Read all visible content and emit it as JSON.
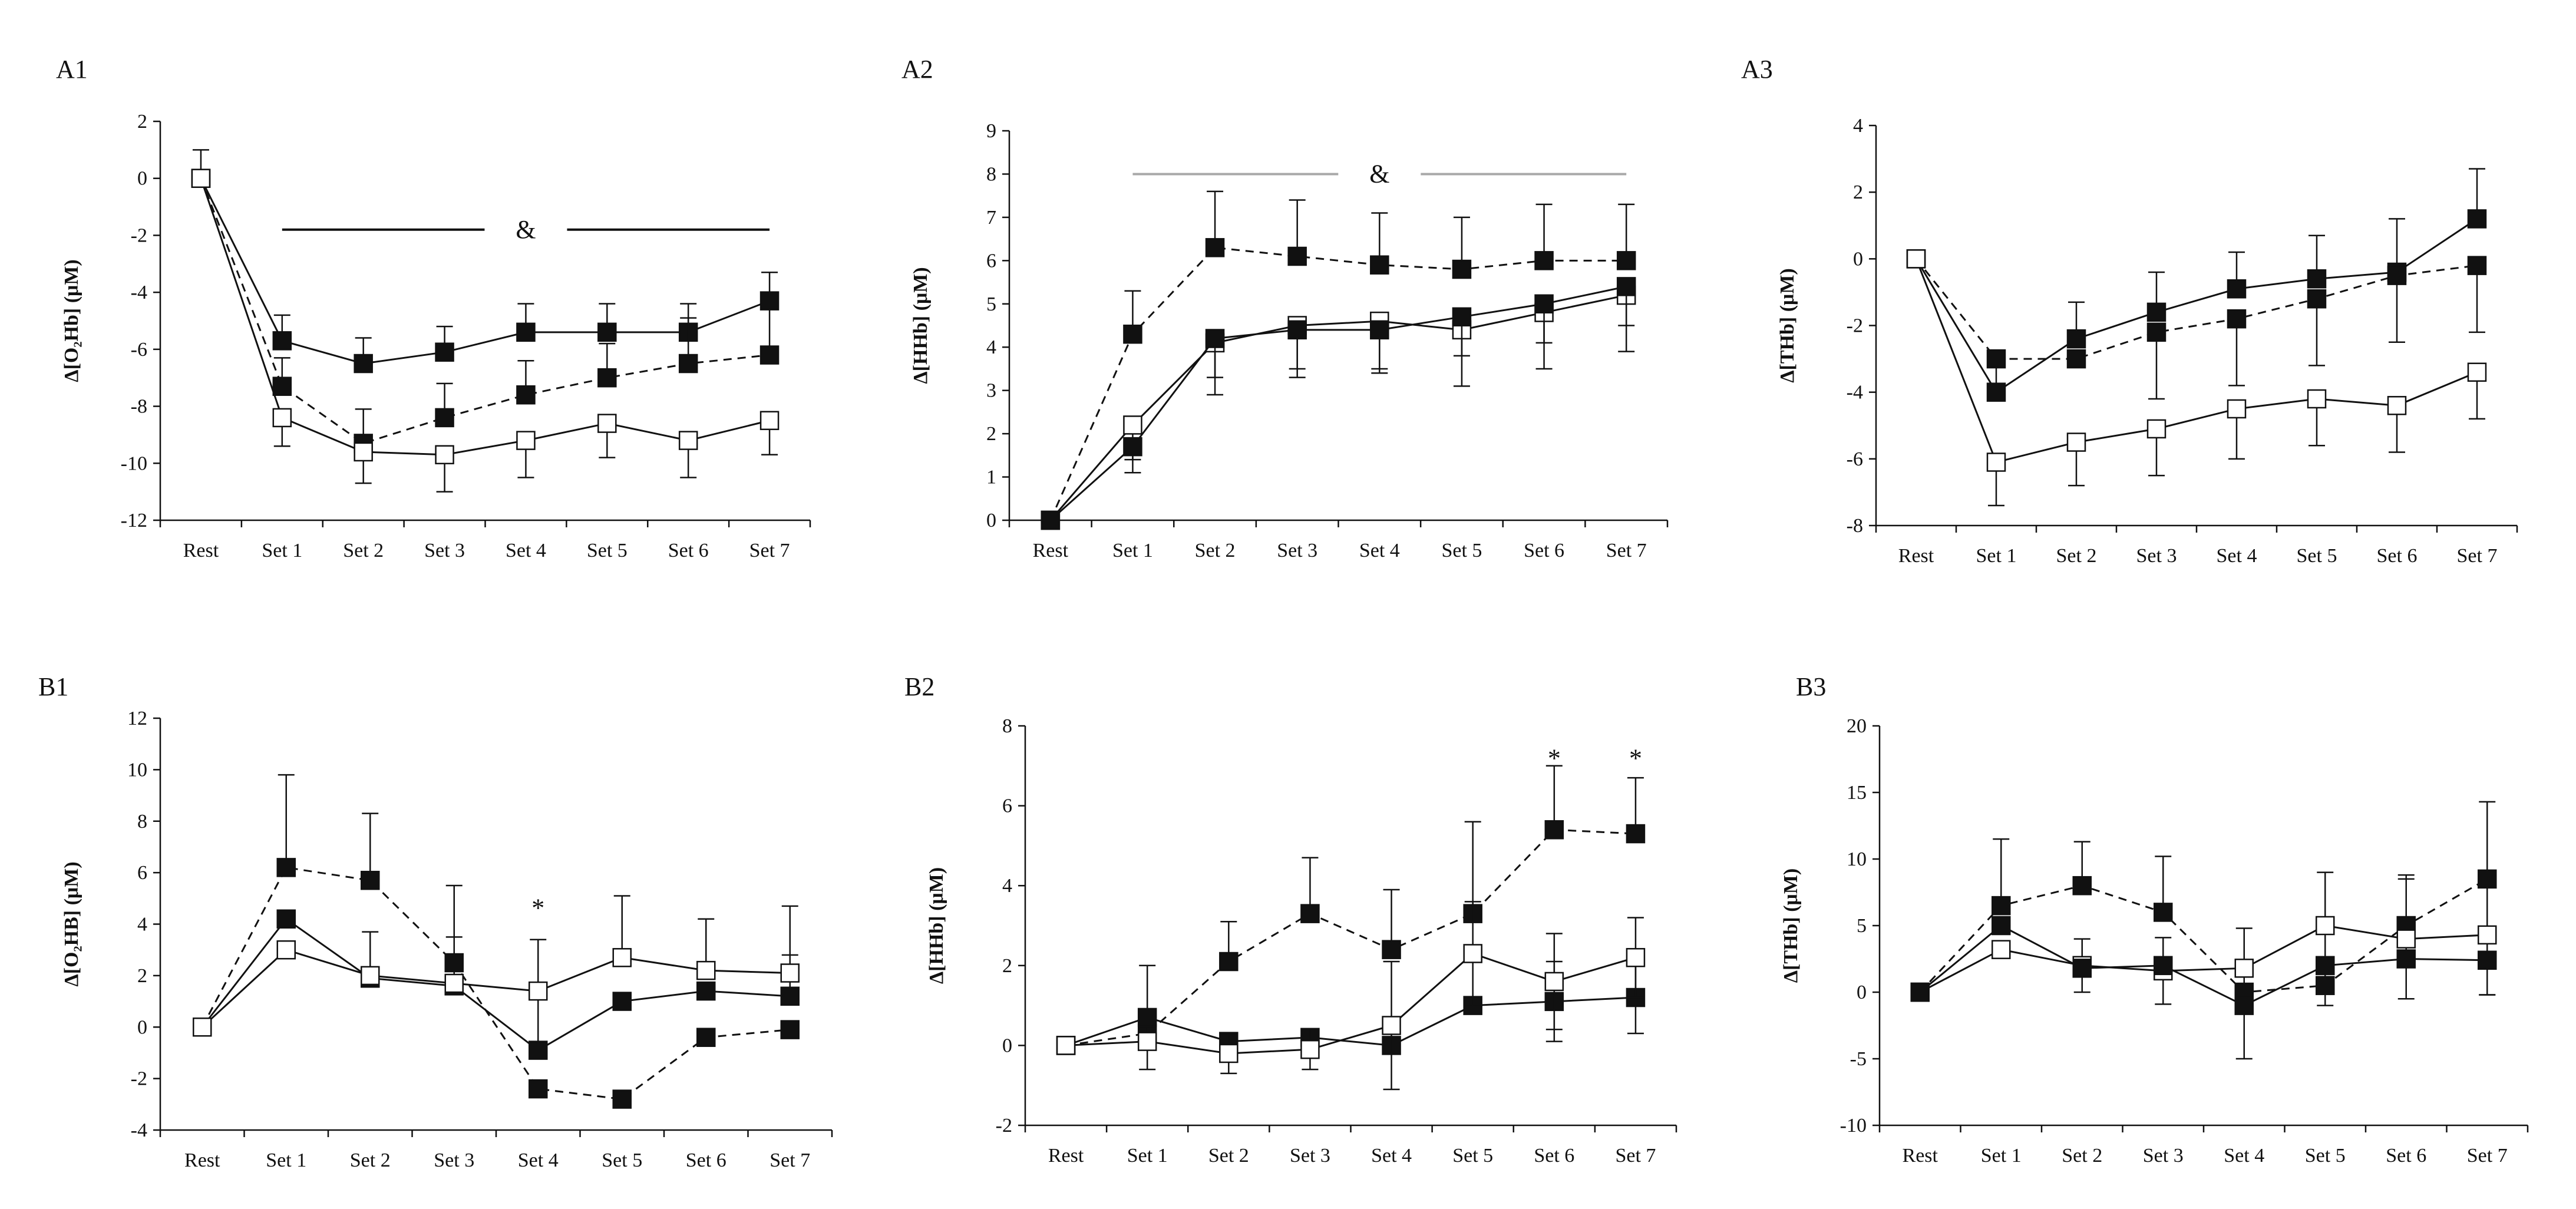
{
  "colors": {
    "ink": "#111111",
    "grey_bar": "#a8a8a8",
    "open_fill": "#ffffff",
    "filled": "#111111"
  },
  "chart_data": [
    {
      "id": "A1",
      "label": "A1",
      "type": "line",
      "categories": [
        "Rest",
        "Set 1",
        "Set 2",
        "Set 3",
        "Set 4",
        "Set 5",
        "Set 6",
        "Set 7"
      ],
      "ylabel": "Δ[O₂Hb] (μM)",
      "ylim": [
        -12,
        2
      ],
      "yticks": [
        -12,
        -10,
        -8,
        -6,
        -4,
        -2,
        0,
        2
      ],
      "series": [
        {
          "name": "filled-solid",
          "marker": "filled",
          "line": "solid",
          "values": [
            0,
            -5.7,
            -6.5,
            -6.1,
            -5.4,
            -5.4,
            -5.4,
            -4.3
          ],
          "errors": [
            1.0,
            0.9,
            0.9,
            0.9,
            1.0,
            1.0,
            1.0,
            1.0
          ],
          "err_dir": "up"
        },
        {
          "name": "filled-dashed",
          "marker": "filled",
          "line": "dashed",
          "values": [
            0,
            -7.3,
            -9.3,
            -8.4,
            -7.6,
            -7.0,
            -6.5,
            -6.2
          ],
          "errors": [
            0,
            1.0,
            1.2,
            1.2,
            1.2,
            1.2,
            1.6,
            1.6
          ],
          "err_dir": "up"
        },
        {
          "name": "open-solid",
          "marker": "open",
          "line": "solid",
          "values": [
            0,
            -8.4,
            -9.6,
            -9.7,
            -9.2,
            -8.6,
            -9.2,
            -8.5
          ],
          "errors": [
            0,
            1.0,
            1.1,
            1.3,
            1.3,
            1.2,
            1.3,
            1.2
          ],
          "err_dir": "down"
        }
      ],
      "annotations": [
        {
          "type": "significance-bar",
          "text": "&",
          "from": 1,
          "to": 7,
          "y": -1.8,
          "color": "#111111"
        }
      ]
    },
    {
      "id": "A2",
      "label": "A2",
      "type": "line",
      "categories": [
        "Rest",
        "Set 1",
        "Set 2",
        "Set 3",
        "Set 4",
        "Set 5",
        "Set 6",
        "Set 7"
      ],
      "ylabel": "Δ[HHb] (μM)",
      "ylim": [
        0,
        9
      ],
      "yticks": [
        0,
        1,
        2,
        3,
        4,
        5,
        6,
        7,
        8,
        9
      ],
      "series": [
        {
          "name": "filled-dashed",
          "marker": "filled",
          "line": "dashed",
          "values": [
            0,
            4.3,
            6.3,
            6.1,
            5.9,
            5.8,
            6.0,
            6.0
          ],
          "errors": [
            0,
            1.0,
            1.3,
            1.3,
            1.2,
            1.2,
            1.3,
            1.3
          ],
          "err_dir": "up"
        },
        {
          "name": "open-solid",
          "marker": "open",
          "line": "solid",
          "values": [
            0,
            2.2,
            4.1,
            4.5,
            4.6,
            4.4,
            4.8,
            5.2
          ],
          "errors": [
            0,
            0.8,
            1.2,
            1.2,
            1.2,
            1.3,
            1.3,
            1.3
          ],
          "err_dir": "down"
        },
        {
          "name": "filled-solid",
          "marker": "filled",
          "line": "solid",
          "values": [
            0,
            1.7,
            4.2,
            4.4,
            4.4,
            4.7,
            5.0,
            5.4
          ],
          "errors": [
            0,
            0.6,
            0.9,
            0.9,
            0.9,
            0.9,
            0.9,
            0.9
          ],
          "err_dir": "down"
        }
      ],
      "annotations": [
        {
          "type": "significance-bar",
          "text": "&",
          "from": 1,
          "to": 7,
          "y": 8.0,
          "color": "#a8a8a8"
        }
      ]
    },
    {
      "id": "A3",
      "label": "A3",
      "type": "line",
      "categories": [
        "Rest",
        "Set 1",
        "Set 2",
        "Set 3",
        "Set 4",
        "Set 5",
        "Set 6",
        "Set 7"
      ],
      "ylabel": "Δ[THb] (μM)",
      "ylim": [
        -8,
        4
      ],
      "yticks": [
        -8,
        -6,
        -4,
        -2,
        0,
        2,
        4
      ],
      "series": [
        {
          "name": "filled-solid",
          "marker": "filled",
          "line": "solid",
          "values": [
            0,
            -4.0,
            -2.4,
            -1.6,
            -0.9,
            -0.6,
            -0.4,
            1.2
          ],
          "errors": [
            0,
            1.0,
            1.1,
            1.2,
            1.1,
            1.3,
            1.6,
            1.5
          ],
          "err_dir": "up"
        },
        {
          "name": "filled-dashed",
          "marker": "filled",
          "line": "dashed",
          "values": [
            0,
            -3.0,
            -3.0,
            -2.2,
            -1.8,
            -1.2,
            -0.5,
            -0.2
          ],
          "errors": [
            0,
            0,
            0,
            2.0,
            2.0,
            2.0,
            2.0,
            2.0
          ],
          "err_dir": "down"
        },
        {
          "name": "open-solid",
          "marker": "open",
          "line": "solid",
          "values": [
            0,
            -6.1,
            -5.5,
            -5.1,
            -4.5,
            -4.2,
            -4.4,
            -3.4
          ],
          "errors": [
            0,
            1.3,
            1.3,
            1.4,
            1.5,
            1.4,
            1.4,
            1.4
          ],
          "err_dir": "down"
        }
      ],
      "annotations": []
    },
    {
      "id": "B1",
      "label": "B1",
      "type": "line",
      "categories": [
        "Rest",
        "Set 1",
        "Set 2",
        "Set 3",
        "Set 4",
        "Set 5",
        "Set 6",
        "Set 7"
      ],
      "ylabel": "Δ[O₂HB] (μM)",
      "ylim": [
        -4,
        12
      ],
      "yticks": [
        -4,
        -2,
        0,
        2,
        4,
        6,
        8,
        10,
        12
      ],
      "series": [
        {
          "name": "filled-dashed",
          "marker": "filled",
          "line": "dashed",
          "values": [
            0,
            6.2,
            5.7,
            2.5,
            -2.4,
            -2.8,
            -0.4,
            -0.1
          ],
          "errors": [
            0,
            3.6,
            2.6,
            3.0,
            0,
            0,
            0,
            0
          ],
          "err_dir": "up"
        },
        {
          "name": "filled-solid",
          "marker": "filled",
          "line": "solid",
          "values": [
            0,
            4.2,
            1.9,
            1.6,
            -0.9,
            1.0,
            1.4,
            1.2
          ],
          "errors": [
            0,
            0,
            1.8,
            1.9,
            2.0,
            0,
            0,
            1.6
          ],
          "err_dir": "up"
        },
        {
          "name": "open-solid",
          "marker": "open",
          "line": "solid",
          "values": [
            0,
            3.0,
            2.0,
            1.7,
            1.4,
            2.7,
            2.2,
            2.1
          ],
          "errors": [
            0,
            0,
            0,
            0,
            2.0,
            2.4,
            2.0,
            2.6
          ],
          "err_dir": "up"
        }
      ],
      "annotations": [
        {
          "type": "star",
          "text": "*",
          "category": 4,
          "y": 4.8
        }
      ]
    },
    {
      "id": "B2",
      "label": "B2",
      "type": "line",
      "categories": [
        "Rest",
        "Set 1",
        "Set 2",
        "Set 3",
        "Set 4",
        "Set 5",
        "Set 6",
        "Set 7"
      ],
      "ylabel": "Δ[HHb] (μM)",
      "ylim": [
        -2,
        8
      ],
      "yticks": [
        -2,
        0,
        2,
        4,
        6,
        8
      ],
      "series": [
        {
          "name": "filled-dashed",
          "marker": "filled",
          "line": "dashed",
          "values": [
            0,
            0.3,
            2.1,
            3.3,
            2.4,
            3.3,
            5.4,
            5.3
          ],
          "errors": [
            0,
            0,
            1.0,
            1.4,
            1.5,
            2.3,
            1.6,
            1.4
          ],
          "err_dir": "up"
        },
        {
          "name": "filled-solid",
          "marker": "filled",
          "line": "solid",
          "values": [
            0,
            0.7,
            0.1,
            0.2,
            0.0,
            1.0,
            1.1,
            1.2
          ],
          "errors": [
            0,
            1.3,
            0,
            0,
            0,
            0,
            1.0,
            0.9
          ],
          "err_dir": "both"
        },
        {
          "name": "open-solid",
          "marker": "open",
          "line": "solid",
          "values": [
            0,
            0.1,
            -0.2,
            -0.1,
            0.5,
            2.3,
            1.6,
            2.2
          ],
          "errors": [
            0,
            0,
            0.5,
            0.5,
            1.6,
            1.3,
            1.2,
            1.0
          ],
          "err_dir": "both"
        }
      ],
      "annotations": [
        {
          "type": "star",
          "text": "*",
          "category": 6,
          "y": 7.3
        },
        {
          "type": "star",
          "text": "*",
          "category": 7,
          "y": 7.3
        }
      ]
    },
    {
      "id": "B3",
      "label": "B3",
      "type": "line",
      "categories": [
        "Rest",
        "Set 1",
        "Set 2",
        "Set 3",
        "Set 4",
        "Set 5",
        "Set 6",
        "Set 7"
      ],
      "ylabel": "Δ[THb] (μM)",
      "ylim": [
        -10,
        20
      ],
      "yticks": [
        -10,
        -5,
        0,
        5,
        10,
        15,
        20
      ],
      "series": [
        {
          "name": "filled-dashed",
          "marker": "filled",
          "line": "dashed",
          "values": [
            0,
            6.5,
            8.0,
            6.0,
            0,
            0.5,
            5.0,
            8.5
          ],
          "errors": [
            0,
            5.0,
            3.3,
            4.2,
            0,
            0,
            3.8,
            5.8
          ],
          "err_dir": "up"
        },
        {
          "name": "open-solid",
          "marker": "open",
          "line": "solid",
          "values": [
            0,
            3.2,
            2.0,
            1.6,
            1.8,
            5.0,
            4.0,
            4.3
          ],
          "errors": [
            0,
            0,
            2.0,
            2.5,
            3.0,
            4.0,
            4.5,
            4.5
          ],
          "err_dir": "both"
        },
        {
          "name": "filled-solid",
          "marker": "filled",
          "line": "solid",
          "values": [
            0,
            5.0,
            1.8,
            2.0,
            -1.0,
            2.0,
            2.5,
            2.4
          ],
          "errors": [
            0,
            0,
            0,
            0,
            4.0,
            3.0,
            0,
            2.6
          ],
          "err_dir": "down"
        }
      ],
      "annotations": []
    }
  ]
}
